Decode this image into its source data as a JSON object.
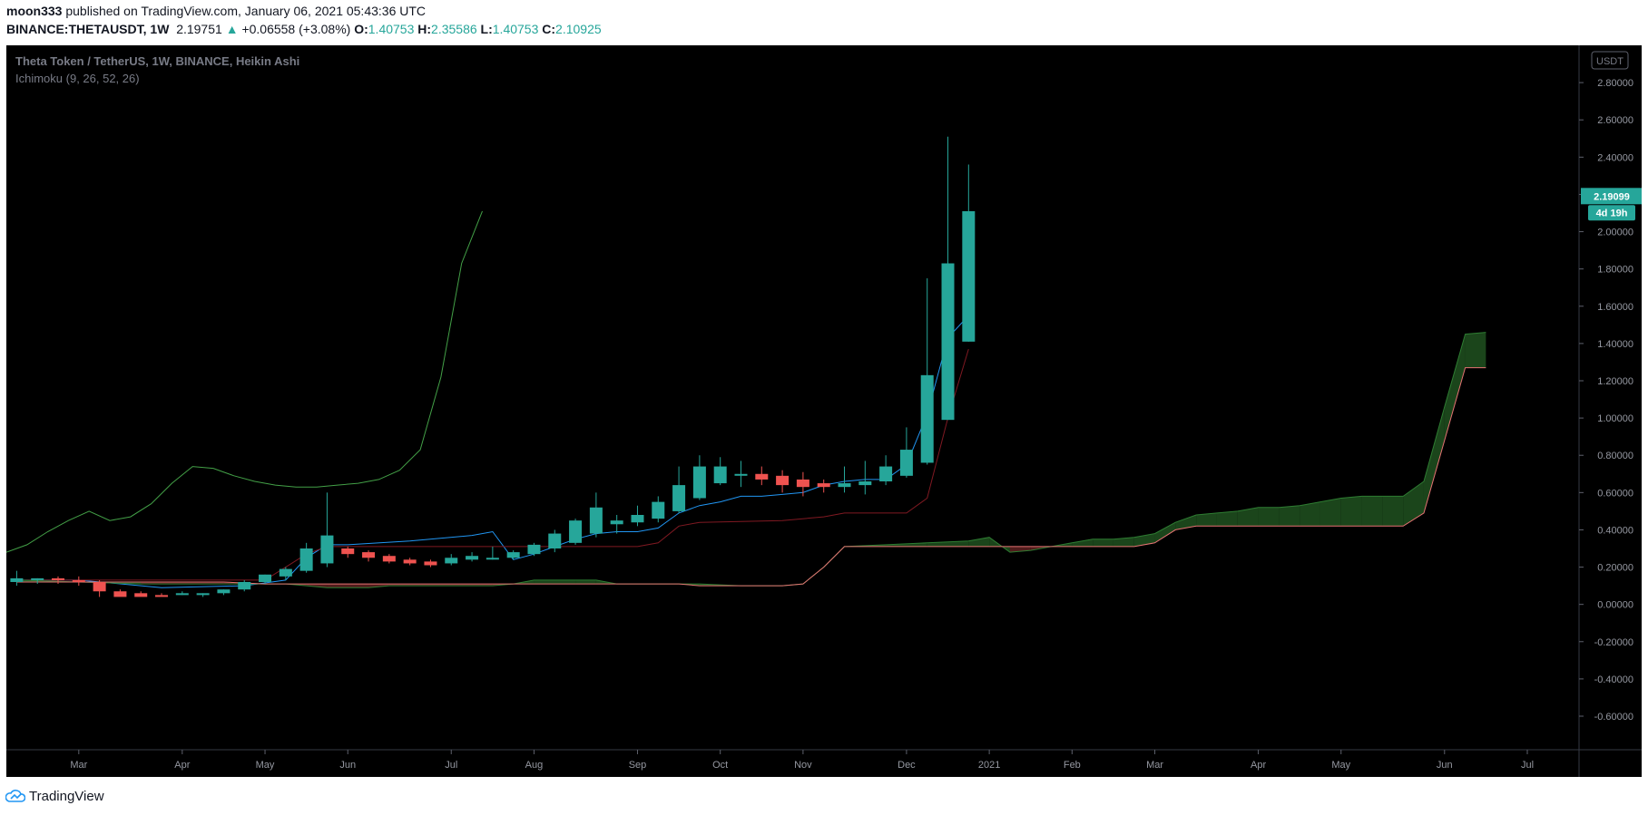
{
  "header": {
    "publisher": "moon333",
    "published_text": "published on TradingView.com, January 06, 2021 05:43:36 UTC",
    "symbol": "BINANCE:THETAUSDT, 1W",
    "last_price": "2.19751",
    "change_arrow": "▲",
    "change": "+0.06558 (+3.08%)",
    "o_label": "O:",
    "o_value": "1.40753",
    "h_label": "H:",
    "h_value": "2.35586",
    "l_label": "L:",
    "l_value": "1.40753",
    "c_label": "C:",
    "c_value": "2.10925"
  },
  "footer": {
    "brand": "TradingView"
  },
  "colors": {
    "background": "#000000",
    "up": "#26a69a",
    "down": "#ef5350",
    "conversion": "#2196f3",
    "base": "#801922",
    "lagging": "#43a047",
    "leading_a": "#2e7d32",
    "leading_b": "#e57373",
    "cloud_up": "#1e4d1e",
    "cloud_down": "#5a1f1f"
  },
  "chart_data": {
    "type": "candlestick",
    "title": "Theta Token / TetherUS, 1W, BINANCE, Heikin Ashi",
    "indicator_label": "Ichimoku (9, 26, 52, 26)",
    "y_axis_unit": "USDT",
    "y_ticks": [
      "2.80000",
      "2.60000",
      "2.40000",
      "2.20000",
      "2.00000",
      "1.80000",
      "1.60000",
      "1.40000",
      "1.20000",
      "1.00000",
      "0.80000",
      "0.60000",
      "0.40000",
      "0.20000",
      "0.00000",
      "-0.20000",
      "-0.40000",
      "-0.60000"
    ],
    "y_tick_values": [
      2.8,
      2.6,
      2.4,
      2.2,
      2.0,
      1.8,
      1.6,
      1.4,
      1.2,
      1.0,
      0.8,
      0.6,
      0.4,
      0.2,
      0.0,
      -0.2,
      -0.4,
      -0.6
    ],
    "ylim": [
      -0.78,
      3.0
    ],
    "x_labels": [
      {
        "label": "Mar",
        "i": 3.5
      },
      {
        "label": "Apr",
        "i": 8.5
      },
      {
        "label": "May",
        "i": 12.5
      },
      {
        "label": "Jun",
        "i": 16.5
      },
      {
        "label": "Jul",
        "i": 21.5
      },
      {
        "label": "Aug",
        "i": 25.5
      },
      {
        "label": "Sep",
        "i": 30.5
      },
      {
        "label": "Oct",
        "i": 34.5
      },
      {
        "label": "Nov",
        "i": 38.5
      },
      {
        "label": "Dec",
        "i": 43.5
      },
      {
        "label": "2021",
        "i": 47.5
      },
      {
        "label": "Feb",
        "i": 51.5
      },
      {
        "label": "Mar",
        "i": 55.5
      },
      {
        "label": "Apr",
        "i": 60.5
      },
      {
        "label": "May",
        "i": 64.5
      },
      {
        "label": "Jun",
        "i": 69.5
      },
      {
        "label": "Jul",
        "i": 73.5
      }
    ],
    "x_range": [
      0,
      76
    ],
    "price_label": "2.19099",
    "countdown_label": "4d 19h",
    "price_label_value": 2.191,
    "candles": [
      {
        "i": 0.5,
        "o": 0.12,
        "h": 0.18,
        "l": 0.1,
        "c": 0.14
      },
      {
        "i": 1.5,
        "o": 0.13,
        "h": 0.14,
        "l": 0.11,
        "c": 0.14
      },
      {
        "i": 2.5,
        "o": 0.14,
        "h": 0.15,
        "l": 0.11,
        "c": 0.13
      },
      {
        "i": 3.5,
        "o": 0.13,
        "h": 0.15,
        "l": 0.1,
        "c": 0.12
      },
      {
        "i": 4.5,
        "o": 0.12,
        "h": 0.13,
        "l": 0.04,
        "c": 0.07
      },
      {
        "i": 5.5,
        "o": 0.07,
        "h": 0.08,
        "l": 0.05,
        "c": 0.04
      },
      {
        "i": 6.5,
        "o": 0.06,
        "h": 0.07,
        "l": 0.05,
        "c": 0.04
      },
      {
        "i": 7.5,
        "o": 0.05,
        "h": 0.06,
        "l": 0.05,
        "c": 0.04
      },
      {
        "i": 8.5,
        "o": 0.05,
        "h": 0.07,
        "l": 0.05,
        "c": 0.06
      },
      {
        "i": 9.5,
        "o": 0.05,
        "h": 0.06,
        "l": 0.04,
        "c": 0.06
      },
      {
        "i": 10.5,
        "o": 0.06,
        "h": 0.08,
        "l": 0.05,
        "c": 0.08
      },
      {
        "i": 11.5,
        "o": 0.08,
        "h": 0.13,
        "l": 0.07,
        "c": 0.12
      },
      {
        "i": 12.5,
        "o": 0.12,
        "h": 0.16,
        "l": 0.11,
        "c": 0.16
      },
      {
        "i": 13.5,
        "o": 0.15,
        "h": 0.2,
        "l": 0.13,
        "c": 0.19
      },
      {
        "i": 14.5,
        "o": 0.18,
        "h": 0.33,
        "l": 0.17,
        "c": 0.3
      },
      {
        "i": 15.5,
        "o": 0.22,
        "h": 0.6,
        "l": 0.2,
        "c": 0.37
      },
      {
        "i": 16.5,
        "o": 0.3,
        "h": 0.31,
        "l": 0.25,
        "c": 0.27
      },
      {
        "i": 17.5,
        "o": 0.28,
        "h": 0.29,
        "l": 0.23,
        "c": 0.25
      },
      {
        "i": 18.5,
        "o": 0.26,
        "h": 0.27,
        "l": 0.22,
        "c": 0.23
      },
      {
        "i": 19.5,
        "o": 0.24,
        "h": 0.25,
        "l": 0.21,
        "c": 0.22
      },
      {
        "i": 20.5,
        "o": 0.23,
        "h": 0.24,
        "l": 0.2,
        "c": 0.21
      },
      {
        "i": 21.5,
        "o": 0.22,
        "h": 0.27,
        "l": 0.21,
        "c": 0.25
      },
      {
        "i": 22.5,
        "o": 0.24,
        "h": 0.28,
        "l": 0.23,
        "c": 0.26
      },
      {
        "i": 23.5,
        "o": 0.25,
        "h": 0.31,
        "l": 0.24,
        "c": 0.25
      },
      {
        "i": 24.5,
        "o": 0.25,
        "h": 0.29,
        "l": 0.24,
        "c": 0.28
      },
      {
        "i": 25.5,
        "o": 0.27,
        "h": 0.33,
        "l": 0.26,
        "c": 0.32
      },
      {
        "i": 26.5,
        "o": 0.3,
        "h": 0.4,
        "l": 0.28,
        "c": 0.38
      },
      {
        "i": 27.5,
        "o": 0.33,
        "h": 0.46,
        "l": 0.32,
        "c": 0.45
      },
      {
        "i": 28.5,
        "o": 0.38,
        "h": 0.6,
        "l": 0.36,
        "c": 0.52
      },
      {
        "i": 29.5,
        "o": 0.43,
        "h": 0.48,
        "l": 0.38,
        "c": 0.45
      },
      {
        "i": 30.5,
        "o": 0.44,
        "h": 0.53,
        "l": 0.42,
        "c": 0.48
      },
      {
        "i": 31.5,
        "o": 0.46,
        "h": 0.58,
        "l": 0.44,
        "c": 0.55
      },
      {
        "i": 32.5,
        "o": 0.5,
        "h": 0.74,
        "l": 0.49,
        "c": 0.64
      },
      {
        "i": 33.5,
        "o": 0.57,
        "h": 0.8,
        "l": 0.56,
        "c": 0.74
      },
      {
        "i": 34.5,
        "o": 0.65,
        "h": 0.79,
        "l": 0.64,
        "c": 0.74
      },
      {
        "i": 35.5,
        "o": 0.7,
        "h": 0.77,
        "l": 0.63,
        "c": 0.7
      },
      {
        "i": 36.5,
        "o": 0.7,
        "h": 0.74,
        "l": 0.64,
        "c": 0.67
      },
      {
        "i": 37.5,
        "o": 0.69,
        "h": 0.72,
        "l": 0.6,
        "c": 0.64
      },
      {
        "i": 38.5,
        "o": 0.67,
        "h": 0.71,
        "l": 0.58,
        "c": 0.63
      },
      {
        "i": 39.5,
        "o": 0.65,
        "h": 0.67,
        "l": 0.6,
        "c": 0.63
      },
      {
        "i": 40.5,
        "o": 0.63,
        "h": 0.74,
        "l": 0.6,
        "c": 0.65
      },
      {
        "i": 41.5,
        "o": 0.64,
        "h": 0.77,
        "l": 0.59,
        "c": 0.66
      },
      {
        "i": 42.5,
        "o": 0.66,
        "h": 0.8,
        "l": 0.64,
        "c": 0.74
      },
      {
        "i": 43.5,
        "o": 0.69,
        "h": 0.95,
        "l": 0.68,
        "c": 0.83
      },
      {
        "i": 44.5,
        "o": 0.76,
        "h": 1.75,
        "l": 0.75,
        "c": 1.23
      },
      {
        "i": 45.5,
        "o": 0.99,
        "h": 2.51,
        "l": 0.99,
        "c": 1.83
      },
      {
        "i": 46.5,
        "o": 1.41,
        "h": 2.36,
        "l": 1.41,
        "c": 2.11
      }
    ],
    "series": [
      {
        "name": "Conversion Line",
        "points": [
          [
            0.5,
            0.13
          ],
          [
            3.5,
            0.13
          ],
          [
            7.5,
            0.09
          ],
          [
            11.5,
            0.1
          ],
          [
            13.5,
            0.13
          ],
          [
            14.5,
            0.25
          ],
          [
            15.5,
            0.32
          ],
          [
            16.5,
            0.32
          ],
          [
            19.5,
            0.34
          ],
          [
            22.5,
            0.37
          ],
          [
            23.5,
            0.39
          ],
          [
            24.5,
            0.24
          ],
          [
            25.5,
            0.27
          ],
          [
            26.5,
            0.31
          ],
          [
            27.5,
            0.35
          ],
          [
            28.5,
            0.38
          ],
          [
            29.5,
            0.39
          ],
          [
            30.5,
            0.39
          ],
          [
            31.5,
            0.41
          ],
          [
            32.5,
            0.49
          ],
          [
            33.5,
            0.53
          ],
          [
            34.5,
            0.55
          ],
          [
            35.5,
            0.58
          ],
          [
            36.5,
            0.58
          ],
          [
            37.5,
            0.59
          ],
          [
            38.5,
            0.6
          ],
          [
            39.5,
            0.64
          ],
          [
            40.5,
            0.66
          ],
          [
            41.5,
            0.67
          ],
          [
            42.5,
            0.67
          ],
          [
            43.5,
            0.75
          ],
          [
            44.5,
            1.02
          ],
          [
            45.5,
            1.43
          ],
          [
            46.5,
            1.55
          ]
        ]
      },
      {
        "name": "Base Line",
        "points": [
          [
            0.5,
            0.13
          ],
          [
            10.5,
            0.13
          ],
          [
            12.5,
            0.13
          ],
          [
            14.5,
            0.27
          ],
          [
            15.5,
            0.31
          ],
          [
            23.5,
            0.31
          ],
          [
            24.5,
            0.31
          ],
          [
            30.5,
            0.31
          ],
          [
            31.5,
            0.33
          ],
          [
            32.5,
            0.42
          ],
          [
            33.5,
            0.44
          ],
          [
            37.5,
            0.45
          ],
          [
            39.5,
            0.47
          ],
          [
            40.5,
            0.49
          ],
          [
            43.5,
            0.49
          ],
          [
            44.5,
            0.57
          ],
          [
            45.5,
            1.0
          ],
          [
            46.5,
            1.37
          ]
        ]
      },
      {
        "name": "Lagging Span",
        "points": [
          [
            0,
            0.28
          ],
          [
            1,
            0.32
          ],
          [
            2,
            0.39
          ],
          [
            3,
            0.45
          ],
          [
            4,
            0.5
          ],
          [
            5,
            0.45
          ],
          [
            6,
            0.47
          ],
          [
            7,
            0.54
          ],
          [
            8,
            0.65
          ],
          [
            9,
            0.74
          ],
          [
            10,
            0.73
          ],
          [
            11,
            0.69
          ],
          [
            12,
            0.66
          ],
          [
            13,
            0.64
          ],
          [
            14,
            0.63
          ],
          [
            15,
            0.63
          ],
          [
            16,
            0.64
          ],
          [
            17,
            0.65
          ],
          [
            18,
            0.67
          ],
          [
            19,
            0.72
          ],
          [
            20,
            0.83
          ],
          [
            21,
            1.22
          ],
          [
            22,
            1.83
          ],
          [
            23,
            2.11
          ]
        ]
      },
      {
        "name": "Leading Span A",
        "points": [
          [
            0.5,
            0.13
          ],
          [
            6.5,
            0.11
          ],
          [
            13.5,
            0.11
          ],
          [
            14.5,
            0.1
          ],
          [
            15.5,
            0.09
          ],
          [
            17.5,
            0.09
          ],
          [
            18.5,
            0.1
          ],
          [
            23.5,
            0.1
          ],
          [
            24.5,
            0.11
          ],
          [
            25.5,
            0.13
          ],
          [
            27.5,
            0.13
          ],
          [
            28.5,
            0.13
          ],
          [
            29.5,
            0.11
          ],
          [
            33.5,
            0.11
          ],
          [
            35.5,
            0.1
          ],
          [
            37.5,
            0.1
          ],
          [
            38.5,
            0.11
          ],
          [
            39.5,
            0.2
          ],
          [
            40.5,
            0.31
          ],
          [
            42.5,
            0.32
          ],
          [
            44.5,
            0.33
          ],
          [
            46.5,
            0.34
          ],
          [
            47.5,
            0.36
          ],
          [
            48.5,
            0.28
          ],
          [
            49.5,
            0.29
          ],
          [
            50.5,
            0.31
          ],
          [
            51.5,
            0.33
          ],
          [
            52.5,
            0.35
          ],
          [
            53.5,
            0.35
          ],
          [
            54.5,
            0.36
          ],
          [
            55.5,
            0.38
          ],
          [
            56.5,
            0.44
          ],
          [
            57.5,
            0.48
          ],
          [
            58.5,
            0.49
          ],
          [
            59.5,
            0.5
          ],
          [
            60.5,
            0.52
          ],
          [
            61.5,
            0.52
          ],
          [
            62.5,
            0.53
          ],
          [
            63.5,
            0.55
          ],
          [
            64.5,
            0.57
          ],
          [
            65.5,
            0.58
          ],
          [
            66.5,
            0.58
          ],
          [
            67.5,
            0.58
          ],
          [
            68.5,
            0.66
          ],
          [
            69.5,
            1.06
          ],
          [
            70.5,
            1.45
          ],
          [
            71.5,
            1.46
          ]
        ]
      },
      {
        "name": "Leading Span B",
        "points": [
          [
            0.5,
            0.12
          ],
          [
            10.5,
            0.12
          ],
          [
            12.5,
            0.11
          ],
          [
            13.5,
            0.11
          ],
          [
            23.5,
            0.11
          ],
          [
            24.5,
            0.11
          ],
          [
            32.5,
            0.11
          ],
          [
            33.5,
            0.1
          ],
          [
            37.5,
            0.1
          ],
          [
            38.5,
            0.11
          ],
          [
            39.5,
            0.2
          ],
          [
            40.5,
            0.31
          ],
          [
            46.5,
            0.31
          ],
          [
            47.5,
            0.31
          ],
          [
            53.5,
            0.31
          ],
          [
            54.5,
            0.31
          ],
          [
            55.5,
            0.33
          ],
          [
            56.5,
            0.4
          ],
          [
            57.5,
            0.42
          ],
          [
            58.5,
            0.42
          ],
          [
            67.5,
            0.42
          ],
          [
            68.5,
            0.49
          ],
          [
            69.5,
            0.88
          ],
          [
            70.5,
            1.27
          ],
          [
            71.5,
            1.27
          ]
        ]
      }
    ]
  }
}
